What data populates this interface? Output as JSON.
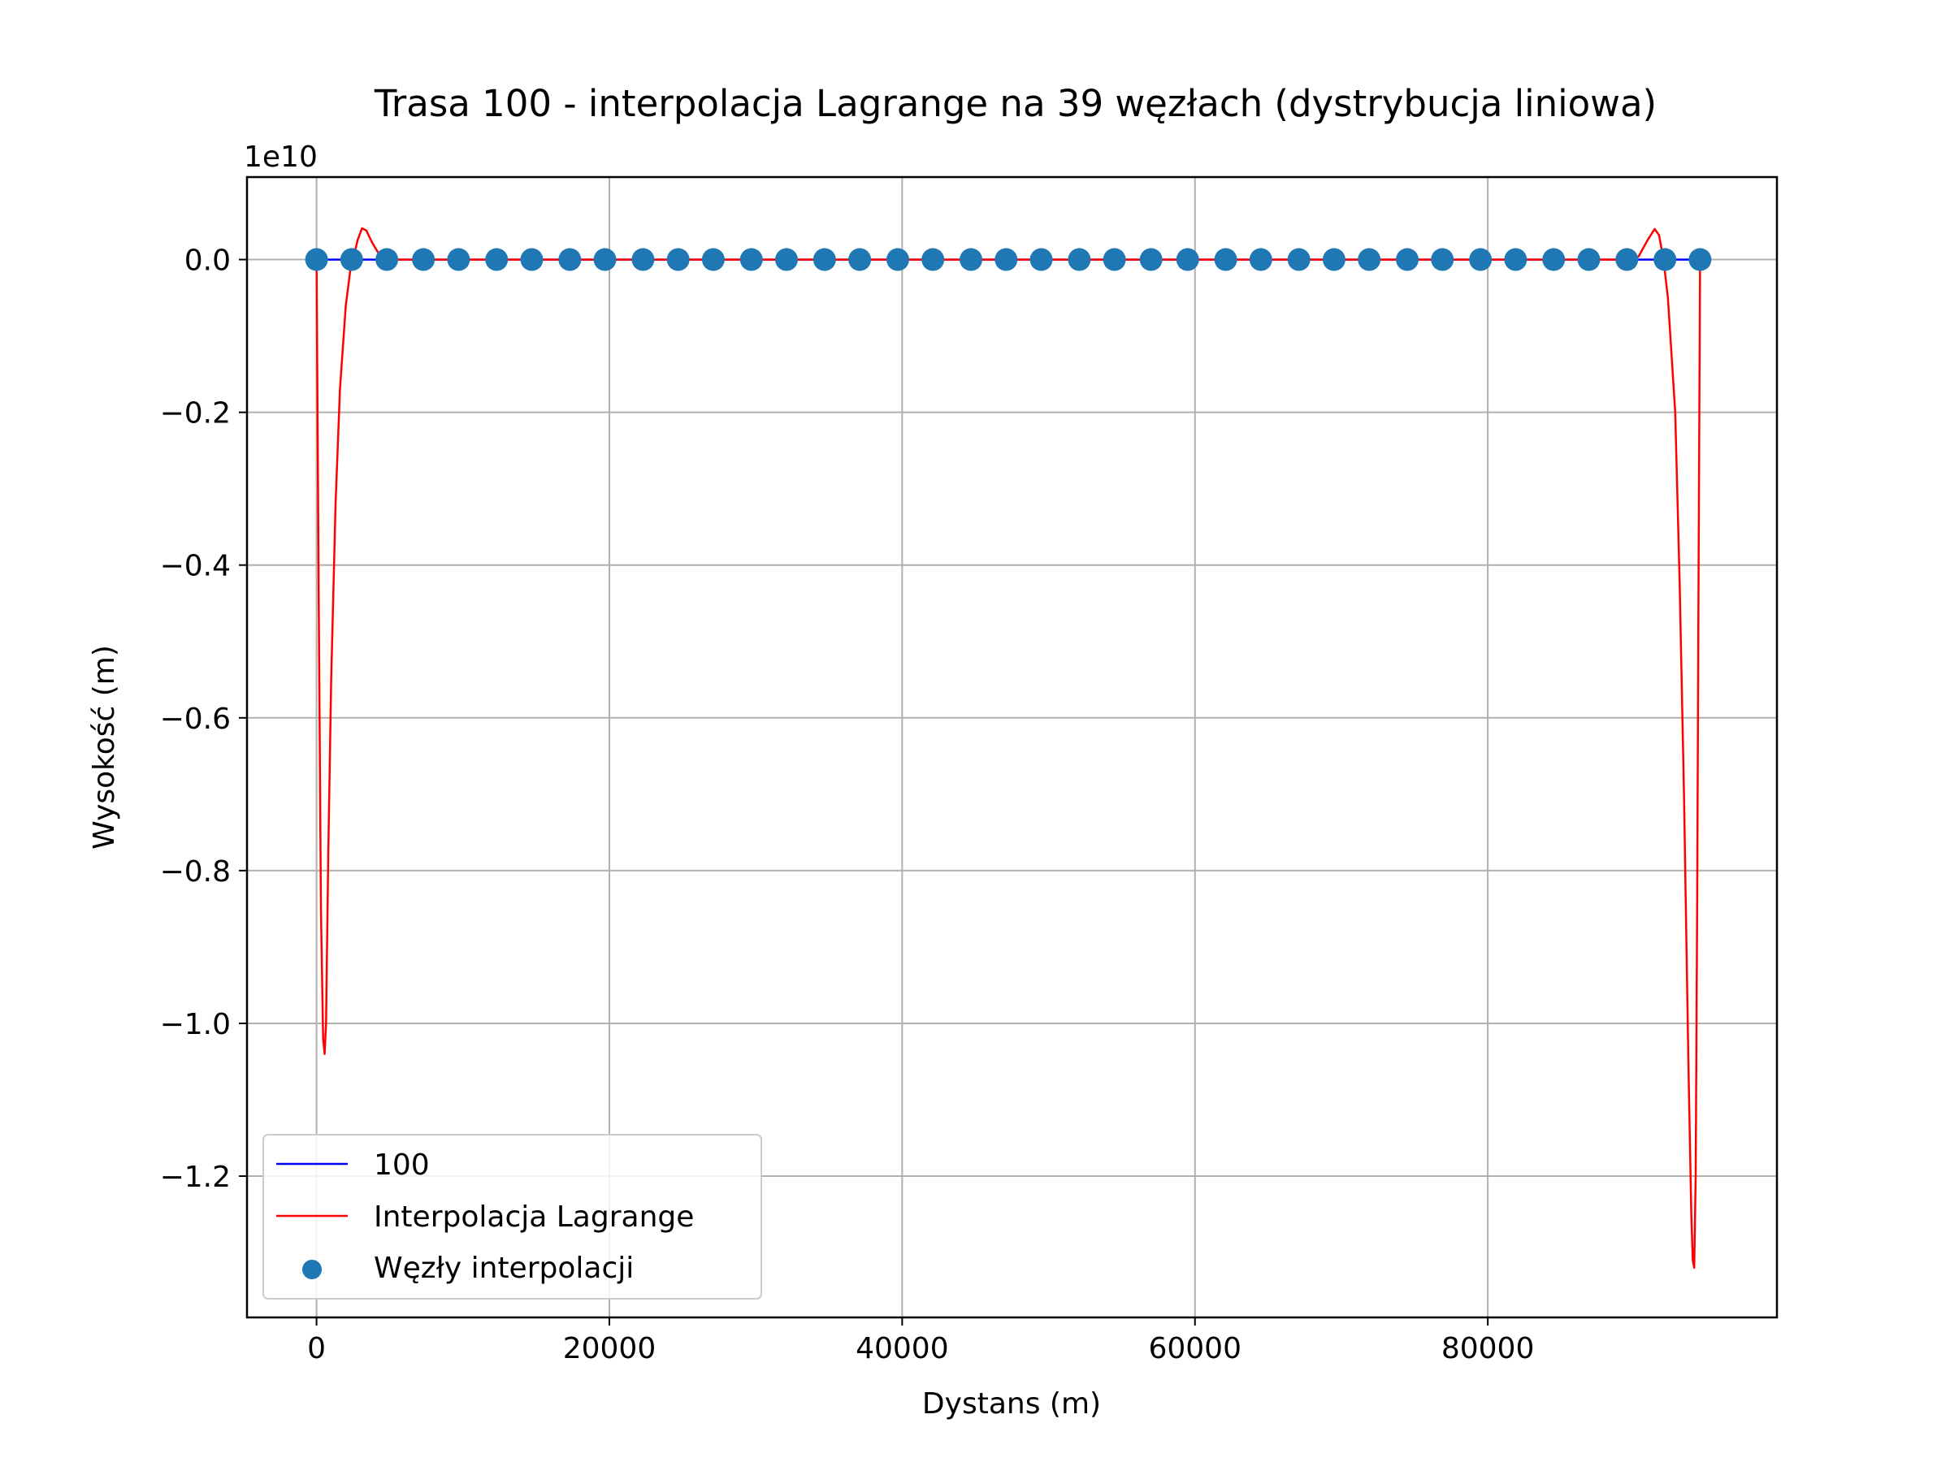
{
  "chart_data": {
    "type": "line",
    "title": "Trasa 100 - interpolacja Lagrange na 39 węzłach (dystrybucja liniowa)",
    "xlabel": "Dystans (m)",
    "ylabel": "Wysokość (m)",
    "y_offset_label": "1e10",
    "xlim": [
      -4750,
      99750
    ],
    "ylim": [
      -1.385,
      0.108
    ],
    "y_scale_factor": 10000000000,
    "x_ticks": [
      0,
      20000,
      40000,
      60000,
      80000
    ],
    "x_tick_labels": [
      "0",
      "20000",
      "40000",
      "60000",
      "80000"
    ],
    "y_ticks": [
      0.0,
      -0.2,
      -0.4,
      -0.6,
      -0.8,
      -1.0,
      -1.2
    ],
    "y_tick_labels": [
      "0.0",
      "−0.2",
      "−0.4",
      "−0.6",
      "−0.8",
      "−1.0",
      "−1.2"
    ],
    "grid": true,
    "legend_position": "bottom-left",
    "legend": [
      "100",
      "Interpolacja Lagrange",
      "Węzły interpolacji"
    ],
    "series": [
      {
        "name": "100",
        "kind": "line",
        "color": "#0000ff",
        "x": [
          0,
          94500
        ],
        "y": [
          0.0,
          0.0
        ]
      },
      {
        "name": "Interpolacja Lagrange",
        "kind": "line",
        "color": "#ff0000",
        "x": [
          0,
          150,
          300,
          450,
          550,
          650,
          800,
          1000,
          1300,
          1600,
          2000,
          2300,
          2500,
          2800,
          3100,
          3400,
          3800,
          4300,
          4900,
          5500,
          47000,
          89000,
          89700,
          90300,
          90900,
          91400,
          91700,
          92000,
          92300,
          92800,
          93100,
          93400,
          93700,
          93900,
          94000,
          94100,
          94200,
          94300,
          94400,
          94500
        ],
        "y": [
          0.0,
          -0.45,
          -0.85,
          -1.02,
          -1.04,
          -1.0,
          -0.78,
          -0.55,
          -0.32,
          -0.17,
          -0.06,
          -0.015,
          0.0,
          0.025,
          0.041,
          0.038,
          0.022,
          0.006,
          0.0,
          0.0,
          0.0,
          0.0,
          -0.002,
          0.004,
          0.025,
          0.04,
          0.032,
          0.0,
          -0.05,
          -0.2,
          -0.42,
          -0.7,
          -1.05,
          -1.25,
          -1.31,
          -1.32,
          -1.2,
          -0.85,
          -0.4,
          0.0
        ]
      },
      {
        "name": "Węzły interpolacji",
        "kind": "scatter",
        "color": "#1f77b4",
        "x": [
          0,
          2400,
          4800,
          7300,
          9700,
          12300,
          14700,
          17300,
          19700,
          22300,
          24700,
          27100,
          29700,
          32100,
          34700,
          37100,
          39700,
          42100,
          44700,
          47100,
          49500,
          52100,
          54500,
          57000,
          59500,
          62100,
          64500,
          67100,
          69500,
          71900,
          74500,
          76900,
          79500,
          81900,
          84500,
          86900,
          89500,
          92100,
          94500
        ],
        "y": [
          0,
          0,
          0,
          0,
          0,
          0,
          0,
          0,
          0,
          0,
          0,
          0,
          0,
          0,
          0,
          0,
          0,
          0,
          0,
          0,
          0,
          0,
          0,
          0,
          0,
          0,
          0,
          0,
          0,
          0,
          0,
          0,
          0,
          0,
          0,
          0,
          0,
          0,
          0
        ]
      }
    ]
  }
}
